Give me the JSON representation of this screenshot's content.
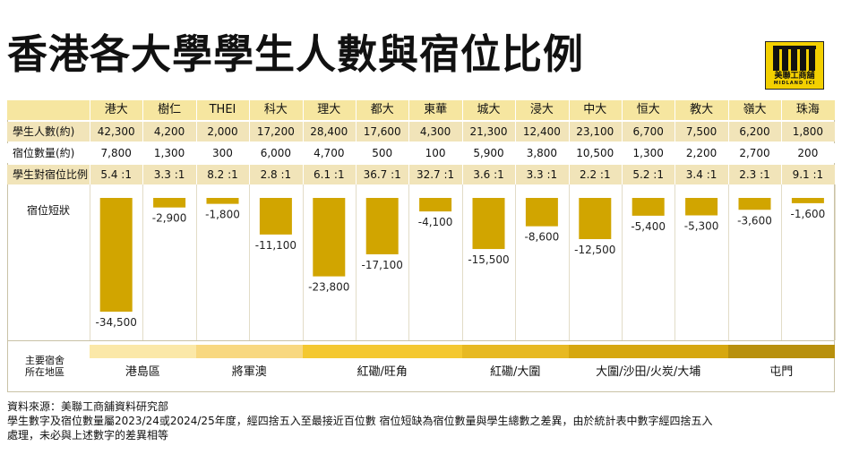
{
  "title": "香港各大學學生人數與宿位比例",
  "logo": {
    "name_zh": "美聯工商舖",
    "name_en": "MIDLAND ICI",
    "primary_color": "#f3d000"
  },
  "table": {
    "universities": [
      "港大",
      "樹仁",
      "THEI",
      "科大",
      "理大",
      "都大",
      "東華",
      "城大",
      "浸大",
      "中大",
      "恒大",
      "教大",
      "嶺大",
      "珠海"
    ],
    "rows": [
      {
        "label": "學生人數(約)",
        "values": [
          "42,300",
          "4,200",
          "2,000",
          "17,200",
          "28,400",
          "17,600",
          "4,300",
          "21,300",
          "12,400",
          "23,100",
          "6,700",
          "7,500",
          "6,200",
          "1,800"
        ]
      },
      {
        "label": "宿位數量(約)",
        "values": [
          "7,800",
          "1,300",
          "300",
          "6,000",
          "4,700",
          "500",
          "100",
          "5,900",
          "3,800",
          "10,500",
          "1,300",
          "2,200",
          "2,700",
          "200"
        ]
      },
      {
        "label": "學生對宿位比例",
        "values": [
          "5.4 :1",
          "3.3 :1",
          "8.2 :1",
          "2.8 :1",
          "6.1 :1",
          "36.7 :1",
          "32.7 :1",
          "3.6 :1",
          "3.3 :1",
          "2.2 :1",
          "5.2 :1",
          "3.4 :1",
          "2.3 :1",
          "9.1 :1"
        ]
      }
    ],
    "header_color": "#f6e6a0",
    "shade_color": "#f1e4b9"
  },
  "chart_data": {
    "type": "bar",
    "title": "宿位短狀",
    "categories": [
      "港大",
      "樹仁",
      "THEI",
      "科大",
      "理大",
      "都大",
      "東華",
      "城大",
      "浸大",
      "中大",
      "恒大",
      "教大",
      "嶺大",
      "珠海"
    ],
    "values": [
      -34500,
      -2900,
      -1800,
      -11100,
      -23800,
      -17100,
      -4100,
      -15500,
      -8600,
      -12500,
      -5400,
      -5300,
      -3600,
      -1600
    ],
    "value_labels": [
      "-34,500",
      "-2,900",
      "-1,800",
      "-11,100",
      "-23,800",
      "-17,100",
      "-4,100",
      "-15,500",
      "-8,600",
      "-12,500",
      "-5,400",
      "-5,300",
      "-3,600",
      "-1,600"
    ],
    "ylim": [
      -35000,
      0
    ],
    "bar_color": "#d1a500"
  },
  "locations": {
    "label_line1": "主要宿舍",
    "label_line2": "所在地區",
    "groups": [
      {
        "name": "港島區",
        "span": [
          0,
          1
        ],
        "color": "#fbe8a8"
      },
      {
        "name": "將軍澳",
        "span": [
          2,
          3
        ],
        "color": "#f8d880"
      },
      {
        "name": "紅磡/旺角",
        "span": [
          4,
          6
        ],
        "color": "#f4c830"
      },
      {
        "name": "紅磡/大圍",
        "span": [
          7,
          8
        ],
        "color": "#e7b922"
      },
      {
        "name": "大圍/沙田/火炭/大埔",
        "span": [
          9,
          11
        ],
        "color": "#d6a70f"
      },
      {
        "name": "屯門",
        "span": [
          12,
          13
        ],
        "color": "#b8900d"
      }
    ]
  },
  "notes": [
    "資料來源：美聯工商舖資料研究部",
    "學生數字及宿位數量屬2023/24或2024/25年度，經四捨五入至最接近百位數 宿位短缺為宿位數量與學生總數之差異，由於統計表中數字經四捨五入",
    "處理，未必與上述數字的差異相等"
  ]
}
